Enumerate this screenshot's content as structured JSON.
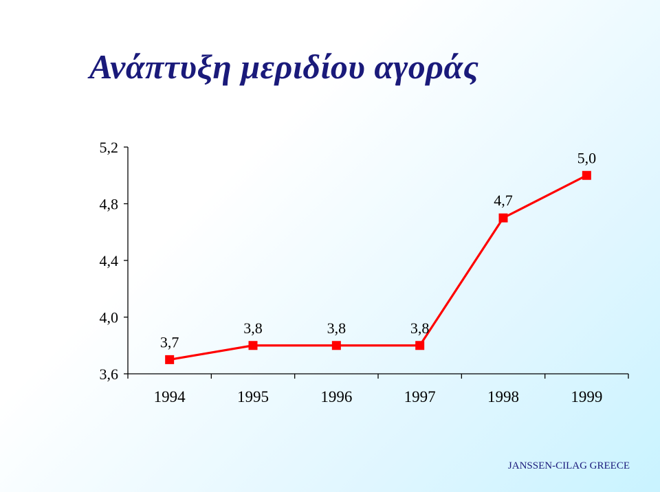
{
  "title": "Ανάπτυξη μεριδίου αγοράς",
  "footer": "JANSSEN-CILAG GREECE",
  "colors": {
    "title": "#1a1a7a",
    "line": "#ff0000",
    "axis": "#000000"
  },
  "chart_data": {
    "type": "line",
    "categories": [
      "1994",
      "1995",
      "1996",
      "1997",
      "1998",
      "1999"
    ],
    "series": [
      {
        "values": [
          3.7,
          3.8,
          3.8,
          3.8,
          4.7,
          5.0
        ]
      }
    ],
    "data_labels": [
      "3,7",
      "3,8",
      "3,8",
      "3,8",
      "4,7",
      "5,0"
    ],
    "ylim": [
      3.6,
      5.2
    ],
    "y_ticks": [
      3.6,
      4.0,
      4.4,
      4.8,
      5.2
    ],
    "y_tick_labels": [
      "3,6",
      "4,0",
      "4,4",
      "4,8",
      "5,2"
    ],
    "marker": "square",
    "grid": false,
    "legend": "none"
  }
}
